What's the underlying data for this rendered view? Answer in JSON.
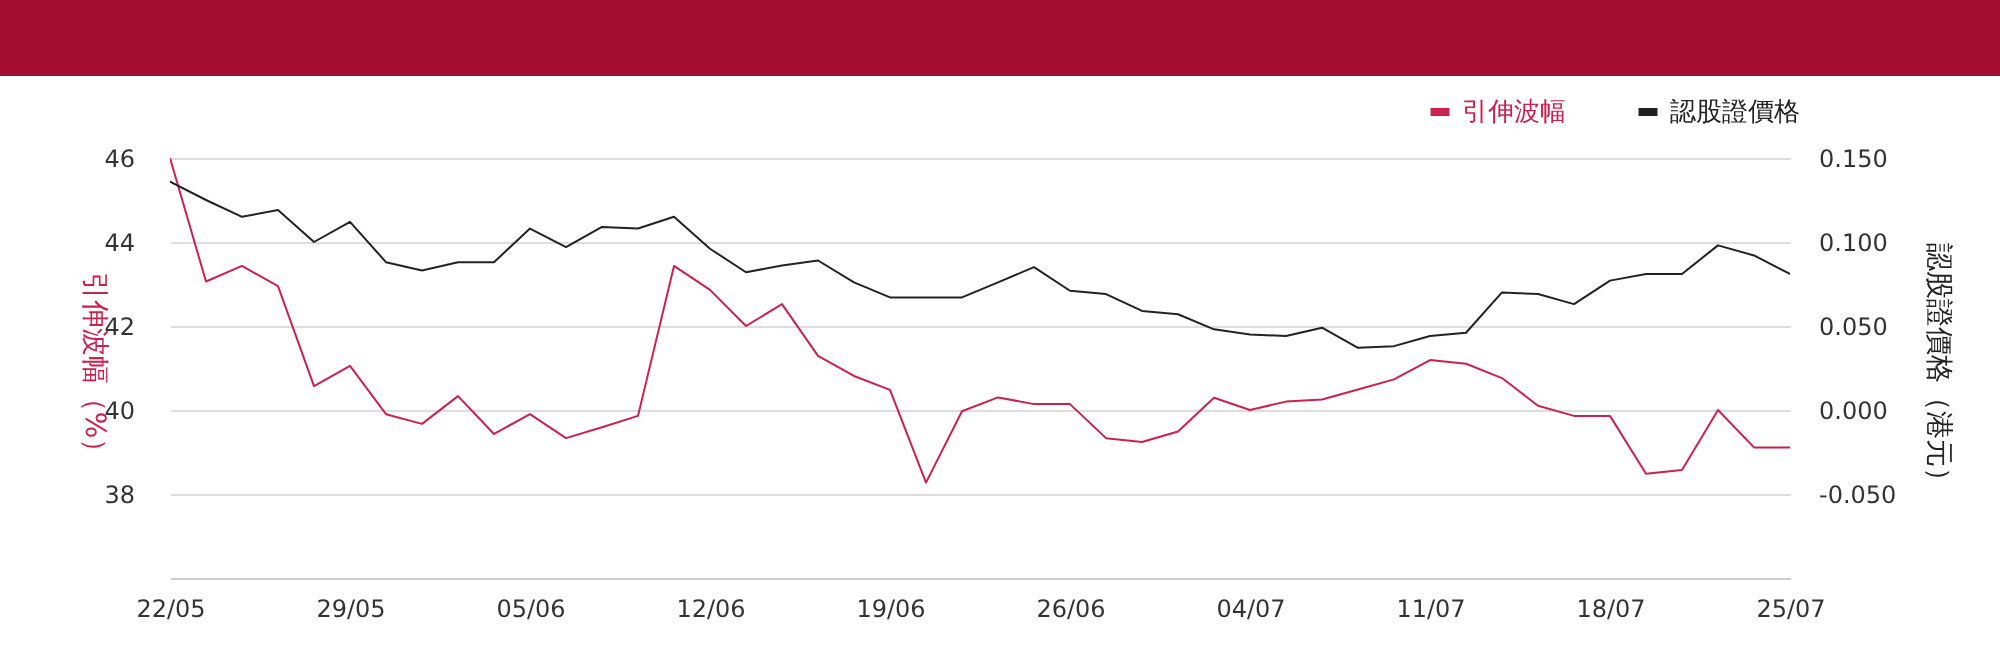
{
  "chart_data": {
    "type": "line",
    "categories": [
      "22/05",
      null,
      null,
      null,
      null,
      "29/05",
      null,
      null,
      null,
      null,
      "05/06",
      null,
      null,
      null,
      null,
      "12/06",
      null,
      null,
      null,
      null,
      "19/06",
      null,
      null,
      null,
      null,
      "26/06",
      null,
      null,
      null,
      null,
      "04/07",
      null,
      null,
      null,
      null,
      "11/07",
      null,
      null,
      null,
      null,
      "18/07",
      null,
      null,
      null,
      null,
      "25/07"
    ],
    "ylabel": "引伸波幅（%）",
    "y2label": "認股證價格（港元）",
    "series": [
      {
        "name": "引伸波幅",
        "color": "#c8234f",
        "values": [
          46.0,
          43.06,
          43.43,
          42.95,
          40.57,
          41.05,
          39.9,
          39.67,
          40.33,
          39.43,
          39.9,
          39.33,
          39.59,
          39.86,
          43.43,
          42.86,
          42.0,
          42.52,
          41.29,
          40.81,
          40.48,
          38.27,
          39.97,
          40.3,
          40.14,
          40.14,
          39.33,
          39.24,
          39.49,
          40.29,
          40.0,
          40.2,
          40.25,
          40.49,
          40.73,
          41.19,
          41.1,
          40.76,
          40.1,
          39.86,
          39.86,
          38.48,
          38.57,
          40.0,
          39.11,
          39.11
        ]
      },
      {
        "name": "認股證價格",
        "color": "#222222",
        "axis": "y2",
        "values": [
          0.136,
          0.125,
          0.115,
          0.119,
          0.1,
          0.112,
          0.088,
          0.083,
          0.088,
          0.088,
          0.108,
          0.097,
          0.109,
          0.108,
          0.115,
          0.096,
          0.082,
          0.086,
          0.089,
          0.076,
          0.067,
          0.067,
          0.067,
          0.076,
          0.085,
          0.071,
          0.069,
          0.059,
          0.057,
          0.048,
          0.045,
          0.044,
          0.049,
          0.037,
          0.038,
          0.044,
          0.046,
          0.07,
          0.069,
          0.063,
          0.077,
          0.081,
          0.081,
          0.098,
          0.092,
          0.081
        ]
      }
    ],
    "ylim": [
      36,
      46
    ],
    "yticks": [
      38,
      40,
      42,
      44,
      46
    ],
    "y2lim": [
      -0.1,
      0.15
    ],
    "y2ticks": [
      {
        "value": -0.05,
        "label": "-0.050"
      },
      {
        "value": 0,
        "label": "0.000"
      },
      {
        "value": 0.05,
        "label": "0.050"
      },
      {
        "value": 0.1,
        "label": "0.100"
      },
      {
        "value": 0.15,
        "label": "0.150"
      }
    ],
    "grid": "y",
    "legend": "top right"
  }
}
